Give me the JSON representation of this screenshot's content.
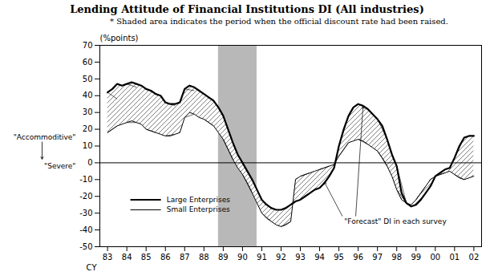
{
  "chart_data": {
    "type": "line",
    "title": "Lending Attitude of Financial Institutions DI (All industries)",
    "subtitle": "* Shaded area indicates the period when the official discount rate had been raised.",
    "ylabel": "(%points)",
    "xlabel": "CY",
    "xlim": [
      82.6,
      102.4
    ],
    "xticks": [
      83,
      84,
      85,
      86,
      87,
      88,
      89,
      90,
      91,
      92,
      93,
      94,
      95,
      96,
      97,
      98,
      99,
      {
        "value": 100,
        "label": "00"
      },
      {
        "value": 101,
        "label": "01"
      },
      {
        "value": 102,
        "label": "02"
      }
    ],
    "ylim": [
      -50,
      70
    ],
    "yticks": [
      -50,
      -40,
      -30,
      -20,
      -10,
      0,
      10,
      20,
      30,
      40,
      50,
      60,
      70
    ],
    "grid": false,
    "legend": "lower left",
    "shaded_region": {
      "start": 88.75,
      "end": 90.75,
      "color": "#b8b8b8"
    },
    "accommodative_label": "\"Accommoditive\"",
    "severe_label": "\"Severe\"",
    "forecast_label": "\"Forecast\" DI in each survey",
    "x": [
      83.0,
      83.25,
      83.5,
      83.75,
      84.0,
      84.25,
      84.5,
      84.75,
      85.0,
      85.25,
      85.5,
      85.75,
      86.0,
      86.25,
      86.5,
      86.75,
      87.0,
      87.25,
      87.5,
      87.75,
      88.0,
      88.25,
      88.5,
      88.75,
      89.0,
      89.25,
      89.5,
      89.75,
      90.0,
      90.25,
      90.5,
      90.75,
      91.0,
      91.25,
      91.5,
      91.75,
      92.0,
      92.25,
      92.5,
      92.75,
      93.0,
      93.25,
      93.5,
      93.75,
      94.0,
      94.25,
      94.5,
      94.75,
      95.0,
      95.25,
      95.5,
      95.75,
      96.0,
      96.25,
      96.5,
      96.75,
      97.0,
      97.25,
      97.5,
      97.75,
      98.0,
      98.25,
      98.5,
      98.75,
      99.0,
      99.25,
      99.5,
      99.75,
      100.0,
      100.25,
      100.5,
      100.75,
      101.0,
      101.25,
      101.5,
      101.75,
      102.0
    ],
    "series": [
      {
        "name": "Large Enterprises",
        "color": "#000000",
        "values": [
          42,
          44,
          47,
          46,
          47,
          48,
          47,
          46,
          44,
          43,
          41,
          40,
          36,
          35,
          35,
          36,
          44,
          46,
          45,
          43,
          41,
          39,
          37,
          33,
          28,
          20,
          12,
          5,
          0,
          -5,
          -10,
          -16,
          -22,
          -25,
          -27,
          -28,
          -28,
          -27,
          -25,
          -23,
          -22,
          -20,
          -18,
          -16,
          -15,
          -12,
          -8,
          -3,
          10,
          20,
          28,
          33,
          35,
          34,
          32,
          29,
          26,
          22,
          14,
          5,
          -2,
          -18,
          -24,
          -26,
          -25,
          -22,
          -18,
          -14,
          -8,
          -6,
          -4,
          -3,
          3,
          10,
          15,
          16,
          16
        ],
        "forecasts": [
          {
            "x1": 83.0,
            "x2": 83.5,
            "y1": 42,
            "y2": 38
          },
          {
            "x1": 84.0,
            "x2": 84.5,
            "y1": 47,
            "y2": 45
          },
          {
            "x1": 85.0,
            "x2": 85.5,
            "y1": 44,
            "y2": 41
          },
          {
            "x1": 86.0,
            "x2": 86.5,
            "y1": 36,
            "y2": 34
          },
          {
            "x1": 87.0,
            "x2": 87.5,
            "y1": 44,
            "y2": 43
          },
          {
            "x1": 88.0,
            "x2": 88.5,
            "y1": 41,
            "y2": 37
          },
          {
            "x1": 89.0,
            "x2": 89.5,
            "y1": 28,
            "y2": 12
          },
          {
            "x1": 90.0,
            "x2": 90.5,
            "y1": 0,
            "y2": -10
          },
          {
            "x1": 91.0,
            "x2": 91.5,
            "y1": -22,
            "y2": -27
          },
          {
            "x1": 92.0,
            "x2": 92.5,
            "y1": -28,
            "y2": -25
          },
          {
            "x1": 93.0,
            "x2": 93.5,
            "y1": -22,
            "y2": -18
          },
          {
            "x1": 94.0,
            "x2": 94.5,
            "y1": -15,
            "y2": -8
          },
          {
            "x1": 95.0,
            "x2": 95.5,
            "y1": 10,
            "y2": 28
          },
          {
            "x1": 96.0,
            "x2": 96.5,
            "y1": 35,
            "y2": 32
          },
          {
            "x1": 97.0,
            "x2": 97.5,
            "y1": 26,
            "y2": 14
          },
          {
            "x1": 98.0,
            "x2": 98.5,
            "y1": -2,
            "y2": -24
          },
          {
            "x1": 99.0,
            "x2": 99.5,
            "y1": -25,
            "y2": -18
          },
          {
            "x1": 100.0,
            "x2": 100.5,
            "y1": -8,
            "y2": -4
          },
          {
            "x1": 101.0,
            "x2": 101.5,
            "y1": 3,
            "y2": 15
          }
        ]
      },
      {
        "name": "Small Enterprises",
        "color": "#000000",
        "values": [
          18,
          20,
          22,
          23,
          24,
          25,
          24,
          23,
          20,
          19,
          18,
          17,
          16,
          16,
          17,
          18,
          27,
          30,
          29,
          27,
          26,
          24,
          22,
          18,
          14,
          8,
          2,
          -3,
          -7,
          -12,
          -18,
          -24,
          -30,
          -33,
          -35,
          -37,
          -38,
          -37,
          -35,
          -10,
          -8,
          -7,
          -6,
          -5,
          -4,
          -3,
          -2,
          -1,
          4,
          8,
          12,
          13,
          14,
          13,
          11,
          9,
          7,
          3,
          -2,
          -8,
          -16,
          -22,
          -24,
          -25,
          -22,
          -18,
          -14,
          -10,
          -8,
          -7,
          -6,
          -5,
          -7,
          -9,
          -10,
          -9,
          -8
        ],
        "forecasts": [
          {
            "x1": 83.0,
            "x2": 83.5,
            "y1": 18,
            "y2": 22
          },
          {
            "x1": 84.0,
            "x2": 84.5,
            "y1": 24,
            "y2": 24
          },
          {
            "x1": 85.0,
            "x2": 85.5,
            "y1": 20,
            "y2": 18
          },
          {
            "x1": 86.0,
            "x2": 86.5,
            "y1": 16,
            "y2": 17
          },
          {
            "x1": 87.0,
            "x2": 87.5,
            "y1": 27,
            "y2": 29
          },
          {
            "x1": 88.0,
            "x2": 88.5,
            "y1": 26,
            "y2": 22
          },
          {
            "x1": 89.0,
            "x2": 89.5,
            "y1": 14,
            "y2": 2
          },
          {
            "x1": 90.0,
            "x2": 90.5,
            "y1": -7,
            "y2": -18
          },
          {
            "x1": 91.0,
            "x2": 91.5,
            "y1": -30,
            "y2": -35
          },
          {
            "x1": 92.0,
            "x2": 92.5,
            "y1": -38,
            "y2": -35
          },
          {
            "x1": 93.0,
            "x2": 93.5,
            "y1": -8,
            "y2": -6
          },
          {
            "x1": 94.0,
            "x2": 94.5,
            "y1": -4,
            "y2": -2
          },
          {
            "x1": 95.0,
            "x2": 95.5,
            "y1": 4,
            "y2": 12
          },
          {
            "x1": 96.0,
            "x2": 96.5,
            "y1": 14,
            "y2": 11
          },
          {
            "x1": 97.0,
            "x2": 97.5,
            "y1": 7,
            "y2": -2
          },
          {
            "x1": 98.0,
            "x2": 98.5,
            "y1": -16,
            "y2": -24
          },
          {
            "x1": 99.0,
            "x2": 99.5,
            "y1": -22,
            "y2": -14
          },
          {
            "x1": 100.0,
            "x2": 100.5,
            "y1": -8,
            "y2": -6
          },
          {
            "x1": 101.0,
            "x2": 101.5,
            "y1": -7,
            "y2": -10
          }
        ]
      }
    ]
  }
}
